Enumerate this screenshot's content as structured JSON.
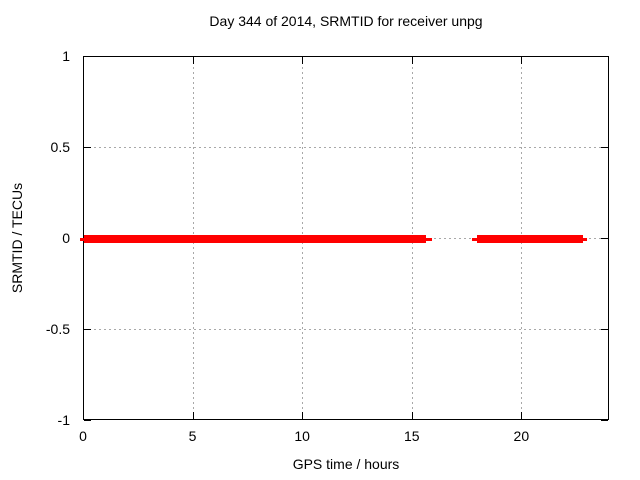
{
  "chart_data": {
    "type": "line",
    "title": "Day 344 of 2014, SRMTID for receiver unpg",
    "xlabel": "GPS time / hours",
    "ylabel": "SRMTID / TECUs",
    "xlim": [
      0,
      24
    ],
    "ylim": [
      -1,
      1
    ],
    "xticks": [
      {
        "value": 0,
        "label": "0"
      },
      {
        "value": 5,
        "label": "5"
      },
      {
        "value": 10,
        "label": "10"
      },
      {
        "value": 15,
        "label": "15"
      },
      {
        "value": 20,
        "label": "20"
      }
    ],
    "yticks": [
      {
        "value": 1,
        "label": "1"
      },
      {
        "value": 0.5,
        "label": "0.5"
      },
      {
        "value": 0,
        "label": "0"
      },
      {
        "value": -0.5,
        "label": "-0.5"
      },
      {
        "value": -1,
        "label": "-1"
      }
    ],
    "grid": true,
    "legend": "none",
    "colors": {
      "line": "#ff0000",
      "grid": "#a8a8a8",
      "axis": "#000000",
      "background": "#ffffff"
    },
    "series": [
      {
        "name": "SRMTID",
        "color": "#ff0000",
        "y_value": 0,
        "segments": [
          {
            "x_start": -0.18,
            "x_end": 0.0,
            "y": 0,
            "style": "thin"
          },
          {
            "x_start": 0.0,
            "x_end": 15.6,
            "y": 0,
            "style": "thick"
          },
          {
            "x_start": 15.6,
            "x_end": 15.9,
            "y": 0,
            "style": "thin"
          },
          {
            "x_start": 17.7,
            "x_end": 17.95,
            "y": 0,
            "style": "thin"
          },
          {
            "x_start": 17.95,
            "x_end": 22.75,
            "y": 0,
            "style": "thick"
          },
          {
            "x_start": 22.75,
            "x_end": 22.95,
            "y": 0,
            "style": "thin"
          }
        ]
      }
    ]
  }
}
